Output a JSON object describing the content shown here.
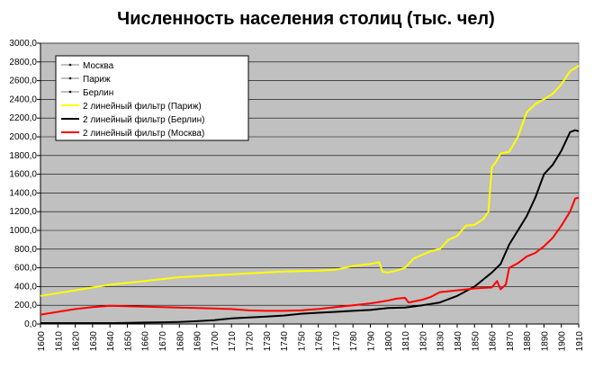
{
  "chart_data": {
    "type": "line",
    "title": "Численность населения столиц (тыс. чел)",
    "xlabel": "",
    "ylabel": "",
    "xlim": [
      1600,
      1910
    ],
    "ylim": [
      0,
      3000
    ],
    "x_ticks": [
      1600,
      1610,
      1620,
      1630,
      1640,
      1650,
      1660,
      1670,
      1680,
      1690,
      1700,
      1710,
      1720,
      1730,
      1740,
      1750,
      1760,
      1770,
      1780,
      1790,
      1800,
      1810,
      1820,
      1830,
      1840,
      1850,
      1860,
      1870,
      1880,
      1890,
      1900,
      1910
    ],
    "y_ticks": [
      "0,0",
      "200,0",
      "400,0",
      "600,0",
      "800,0",
      "1000,0",
      "1200,0",
      "1400,0",
      "1600,0",
      "1800,0",
      "2000,0",
      "2200,0",
      "2400,0",
      "2600,0",
      "2800,0",
      "3000,0"
    ],
    "y_tick_values": [
      0,
      200,
      400,
      600,
      800,
      1000,
      1200,
      1400,
      1600,
      1800,
      2000,
      2200,
      2400,
      2600,
      2800,
      3000
    ],
    "grid": true,
    "legend_position": "top-left",
    "plot_background": "#c0c0c0",
    "legend": [
      {
        "label": "Москва",
        "color": "#000000",
        "style": "marker"
      },
      {
        "label": "Париж",
        "color": "#000000",
        "style": "marker"
      },
      {
        "label": "Берлин",
        "color": "#000000",
        "style": "marker"
      },
      {
        "label": "2 линейный фильтр (Париж)",
        "color": "#ffff00",
        "style": "line"
      },
      {
        "label": "2 линейный фильтр (Берлин)",
        "color": "#000000",
        "style": "line"
      },
      {
        "label": "2 линейный фильтр (Москва)",
        "color": "#ff0000",
        "style": "line"
      }
    ],
    "series": [
      {
        "name": "2 линейный фильтр (Париж)",
        "color": "#ffff00",
        "x": [
          1600,
          1610,
          1620,
          1630,
          1640,
          1650,
          1660,
          1670,
          1680,
          1690,
          1700,
          1710,
          1720,
          1730,
          1740,
          1750,
          1760,
          1770,
          1780,
          1790,
          1795,
          1797,
          1800,
          1805,
          1810,
          1815,
          1820,
          1825,
          1830,
          1835,
          1840,
          1845,
          1850,
          1855,
          1858,
          1860,
          1862,
          1865,
          1870,
          1875,
          1880,
          1885,
          1890,
          1895,
          1900,
          1905,
          1910
        ],
        "y": [
          300,
          330,
          360,
          390,
          420,
          440,
          460,
          480,
          500,
          510,
          520,
          530,
          540,
          550,
          560,
          565,
          570,
          580,
          620,
          640,
          660,
          560,
          550,
          570,
          600,
          700,
          740,
          780,
          800,
          900,
          940,
          1050,
          1060,
          1120,
          1200,
          1680,
          1720,
          1820,
          1840,
          2000,
          2260,
          2350,
          2400,
          2460,
          2560,
          2700,
          2760
        ]
      },
      {
        "name": "2 линейный фильтр (Берлин)",
        "color": "#000000",
        "x": [
          1600,
          1610,
          1620,
          1630,
          1640,
          1650,
          1660,
          1670,
          1680,
          1690,
          1700,
          1710,
          1720,
          1730,
          1740,
          1750,
          1760,
          1770,
          1780,
          1790,
          1800,
          1810,
          1820,
          1830,
          1840,
          1850,
          1860,
          1865,
          1870,
          1875,
          1880,
          1885,
          1890,
          1895,
          1900,
          1905,
          1908,
          1910
        ],
        "y": [
          10,
          10,
          10,
          10,
          10,
          12,
          15,
          18,
          22,
          30,
          40,
          60,
          70,
          80,
          90,
          110,
          120,
          130,
          140,
          150,
          170,
          175,
          200,
          230,
          300,
          400,
          550,
          640,
          850,
          1000,
          1150,
          1350,
          1600,
          1700,
          1850,
          2050,
          2070,
          2060
        ]
      },
      {
        "name": "2 линейный фильтр (Москва)",
        "color": "#ff0000",
        "x": [
          1600,
          1610,
          1620,
          1630,
          1640,
          1650,
          1660,
          1670,
          1680,
          1690,
          1700,
          1710,
          1720,
          1730,
          1740,
          1750,
          1760,
          1770,
          1780,
          1790,
          1800,
          1805,
          1810,
          1812,
          1815,
          1820,
          1825,
          1830,
          1840,
          1850,
          1860,
          1863,
          1865,
          1868,
          1870,
          1875,
          1880,
          1885,
          1890,
          1895,
          1900,
          1905,
          1908,
          1910
        ],
        "y": [
          100,
          130,
          160,
          180,
          195,
          190,
          185,
          180,
          175,
          170,
          165,
          160,
          145,
          140,
          140,
          145,
          160,
          180,
          200,
          220,
          250,
          270,
          280,
          230,
          240,
          260,
          290,
          340,
          360,
          380,
          390,
          460,
          370,
          420,
          600,
          650,
          720,
          760,
          830,
          920,
          1050,
          1200,
          1340,
          1350
        ]
      }
    ]
  }
}
